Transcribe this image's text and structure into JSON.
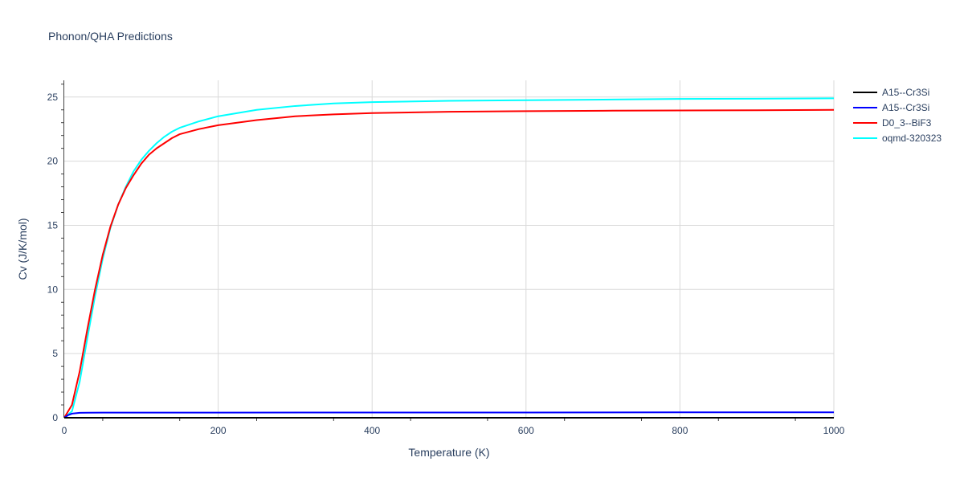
{
  "chart_data": {
    "type": "line",
    "title": "Phonon/QHA Predictions",
    "xlabel": "Temperature (K)",
    "ylabel": "Cv (J/K/mol)",
    "xlim": [
      0,
      1000
    ],
    "ylim": [
      0,
      26.3
    ],
    "xticks": [
      0,
      200,
      400,
      600,
      800,
      1000
    ],
    "yticks": [
      0,
      5,
      10,
      15,
      20,
      25
    ],
    "grid": true,
    "legend_position": "top-right",
    "series": [
      {
        "name": "A15--Cr3Si",
        "color": "#000000",
        "x": [
          0,
          10,
          20,
          50,
          100,
          200,
          400,
          600,
          800,
          1000
        ],
        "y": [
          0,
          0,
          0,
          0,
          0,
          0,
          0,
          0,
          0,
          0
        ]
      },
      {
        "name": "A15--Cr3Si",
        "color": "#0000ff",
        "x": [
          0,
          5,
          10,
          20,
          30,
          50,
          100,
          200,
          400,
          600,
          800,
          1000
        ],
        "y": [
          0,
          0.2,
          0.32,
          0.38,
          0.39,
          0.4,
          0.4,
          0.4,
          0.41,
          0.41,
          0.42,
          0.42
        ]
      },
      {
        "name": "D0_3--BiF3",
        "color": "#ff0000",
        "x": [
          0,
          10,
          20,
          30,
          40,
          50,
          60,
          70,
          80,
          90,
          100,
          110,
          120,
          130,
          140,
          150,
          175,
          200,
          250,
          300,
          350,
          400,
          500,
          600,
          700,
          800,
          900,
          1000
        ],
        "y": [
          0,
          1.0,
          3.6,
          6.9,
          10.0,
          12.7,
          14.9,
          16.6,
          17.9,
          18.9,
          19.8,
          20.5,
          21.0,
          21.4,
          21.8,
          22.1,
          22.5,
          22.8,
          23.2,
          23.5,
          23.65,
          23.75,
          23.85,
          23.9,
          23.93,
          23.95,
          23.97,
          24.0
        ]
      },
      {
        "name": "oqmd-320323",
        "color": "#00ffff",
        "x": [
          0,
          10,
          20,
          30,
          40,
          50,
          60,
          70,
          80,
          90,
          100,
          110,
          120,
          130,
          140,
          150,
          175,
          200,
          250,
          300,
          350,
          400,
          500,
          600,
          700,
          800,
          900,
          1000
        ],
        "y": [
          0,
          0.5,
          2.8,
          6.2,
          9.5,
          12.4,
          14.8,
          16.6,
          18.0,
          19.2,
          20.1,
          20.8,
          21.4,
          21.9,
          22.3,
          22.6,
          23.1,
          23.5,
          24.0,
          24.3,
          24.5,
          24.6,
          24.7,
          24.75,
          24.8,
          24.85,
          24.87,
          24.9
        ]
      }
    ]
  }
}
